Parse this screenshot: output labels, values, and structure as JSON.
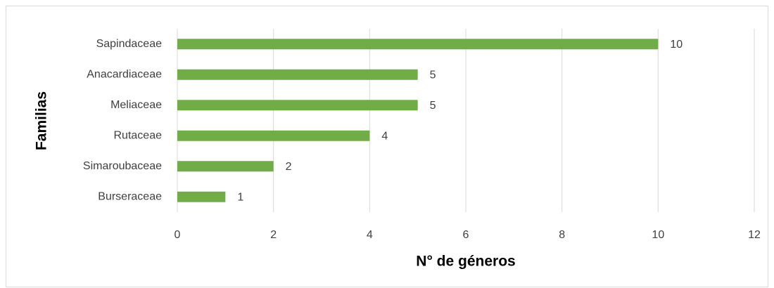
{
  "chart_data": {
    "type": "barh",
    "categories": [
      "Sapindaceae",
      "Anacardiaceae",
      "Meliaceae",
      "Rutaceae",
      "Simaroubaceae",
      "Burseraceae"
    ],
    "values": [
      10,
      5,
      5,
      4,
      2,
      1
    ],
    "color": "#70ad47",
    "xlabel": "N° de géneros",
    "ylabel": "Familias",
    "xlim": [
      0,
      12
    ],
    "xticks": [
      0,
      2,
      4,
      6,
      8,
      10,
      12
    ],
    "grid": true,
    "data_labels": true
  }
}
